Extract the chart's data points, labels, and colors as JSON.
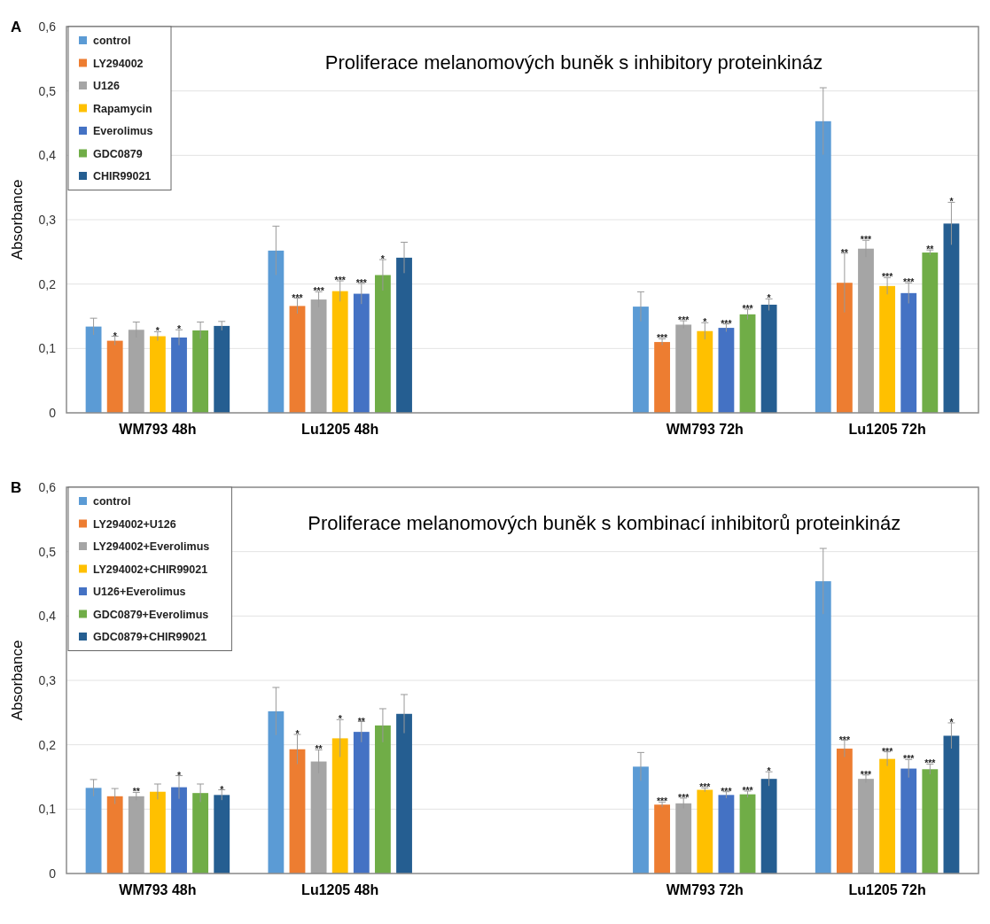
{
  "chart_data": [
    {
      "type": "bar",
      "title": "Proliferace melanomových buněk s inhibitory proteinkináz",
      "ylabel": "Absorbance",
      "annotations": [
        "A"
      ],
      "categories": [
        "WM793 48h",
        "Lu1205 48h",
        null,
        "WM793 72h",
        "Lu1205 72h"
      ],
      "ylim": [
        0,
        0.6
      ],
      "yticks": [
        0,
        {
          "value": 0.1,
          "label": "0,1"
        },
        {
          "value": 0.2,
          "label": "0,2"
        },
        {
          "value": 0.3,
          "label": "0,3"
        },
        {
          "value": 0.4,
          "label": "0,4"
        },
        {
          "value": 0.5,
          "label": "0,5"
        },
        {
          "value": 0.6,
          "label": "0,6"
        }
      ],
      "grid": "y",
      "legend": "top left",
      "series": [
        {
          "name": "control",
          "color": "#5b9bd5",
          "values": [
            0.134,
            0.252,
            null,
            0.165,
            0.453
          ],
          "errors": [
            0.013,
            0.038,
            null,
            0.023,
            0.052
          ]
        },
        {
          "name": "LY294002",
          "color": "#ed7d31",
          "values": [
            0.112,
            0.166,
            null,
            0.11,
            0.202
          ],
          "errors": [
            0.007,
            0.012,
            null,
            0.005,
            0.046
          ],
          "value_labels": [
            "*",
            "***",
            null,
            "***",
            "**"
          ]
        },
        {
          "name": "U126",
          "color": "#a5a5a5",
          "values": [
            0.129,
            0.176,
            null,
            0.137,
            0.255
          ],
          "errors": [
            0.012,
            0.012,
            null,
            0.006,
            0.013
          ],
          "value_labels": [
            null,
            "***",
            null,
            "***",
            "***"
          ]
        },
        {
          "name": "Rapamycin",
          "color": "#ffc000",
          "values": [
            0.119,
            0.189,
            null,
            0.127,
            0.197
          ],
          "errors": [
            0.007,
            0.016,
            null,
            0.013,
            0.013
          ],
          "value_labels": [
            "*",
            "***",
            null,
            "*",
            "***"
          ]
        },
        {
          "name": "Everolimus",
          "color": "#4472c4",
          "values": [
            0.117,
            0.185,
            null,
            0.132,
            0.186
          ],
          "errors": [
            0.012,
            0.016,
            null,
            0.006,
            0.016
          ],
          "value_labels": [
            "*",
            "***",
            null,
            "***",
            "***"
          ]
        },
        {
          "name": "GDC0879",
          "color": "#70ad47",
          "values": [
            0.128,
            0.214,
            null,
            0.153,
            0.249
          ],
          "errors": [
            0.013,
            0.024,
            null,
            0.008,
            0.004
          ],
          "value_labels": [
            null,
            "*",
            null,
            "***",
            "**"
          ]
        },
        {
          "name": "CHIR99021",
          "color": "#255e91",
          "values": [
            0.135,
            0.241,
            null,
            0.168,
            0.294
          ],
          "errors": [
            0.007,
            0.024,
            null,
            0.009,
            0.033
          ],
          "value_labels": [
            null,
            null,
            null,
            "*",
            "*"
          ]
        }
      ]
    },
    {
      "type": "bar",
      "title": "Proliferace melanomových buněk s kombinací inhibitorů proteinkináz",
      "ylabel": "Absorbance",
      "annotations": [
        "B"
      ],
      "categories": [
        "WM793 48h",
        "Lu1205 48h",
        null,
        "WM793 72h",
        "Lu1205 72h"
      ],
      "ylim": [
        0,
        0.6
      ],
      "yticks": [
        0,
        {
          "value": 0.1,
          "label": "0,1"
        },
        {
          "value": 0.2,
          "label": "0,2"
        },
        {
          "value": 0.3,
          "label": "0,3"
        },
        {
          "value": 0.4,
          "label": "0,4"
        },
        {
          "value": 0.5,
          "label": "0,5"
        },
        {
          "value": 0.6,
          "label": "0,6"
        }
      ],
      "grid": "y",
      "legend": "top left",
      "series": [
        {
          "name": "control",
          "color": "#5b9bd5",
          "values": [
            0.133,
            0.252,
            null,
            0.166,
            0.454
          ],
          "errors": [
            0.013,
            0.037,
            null,
            0.022,
            0.051
          ]
        },
        {
          "name": "LY294002+U126",
          "color": "#ed7d31",
          "values": [
            0.12,
            0.193,
            null,
            0.107,
            0.194
          ],
          "errors": [
            0.012,
            0.023,
            null,
            0.004,
            0.013
          ],
          "value_labels": [
            null,
            "*",
            null,
            "***",
            "***"
          ]
        },
        {
          "name": "LY294002+Everolimus",
          "color": "#a5a5a5",
          "values": [
            0.12,
            0.174,
            null,
            0.109,
            0.147
          ],
          "errors": [
            0.006,
            0.018,
            null,
            0.008,
            0.006
          ],
          "value_labels": [
            "**",
            "**",
            null,
            "***",
            "***"
          ]
        },
        {
          "name": "LY294002+CHIR99021",
          "color": "#ffc000",
          "values": [
            0.127,
            0.21,
            null,
            0.13,
            0.178
          ],
          "errors": [
            0.012,
            0.029,
            null,
            0.003,
            0.011
          ],
          "value_labels": [
            null,
            "*",
            null,
            "***",
            "***"
          ]
        },
        {
          "name": "U126+Everolimus",
          "color": "#4472c4",
          "values": [
            0.134,
            0.22,
            null,
            0.122,
            0.163
          ],
          "errors": [
            0.018,
            0.016,
            null,
            0.005,
            0.014
          ],
          "value_labels": [
            "*",
            "**",
            null,
            "***",
            "***"
          ]
        },
        {
          "name": "GDC0879+Everolimus",
          "color": "#70ad47",
          "values": [
            0.125,
            0.23,
            null,
            0.123,
            0.162
          ],
          "errors": [
            0.014,
            0.026,
            null,
            0.005,
            0.008
          ],
          "value_labels": [
            null,
            null,
            null,
            "***",
            "***"
          ]
        },
        {
          "name": "GDC0879+CHIR99021",
          "color": "#255e91",
          "values": [
            0.122,
            0.248,
            null,
            0.147,
            0.214
          ],
          "errors": [
            0.008,
            0.03,
            null,
            0.011,
            0.02
          ],
          "value_labels": [
            "*",
            null,
            null,
            "*",
            "*"
          ]
        }
      ]
    }
  ]
}
